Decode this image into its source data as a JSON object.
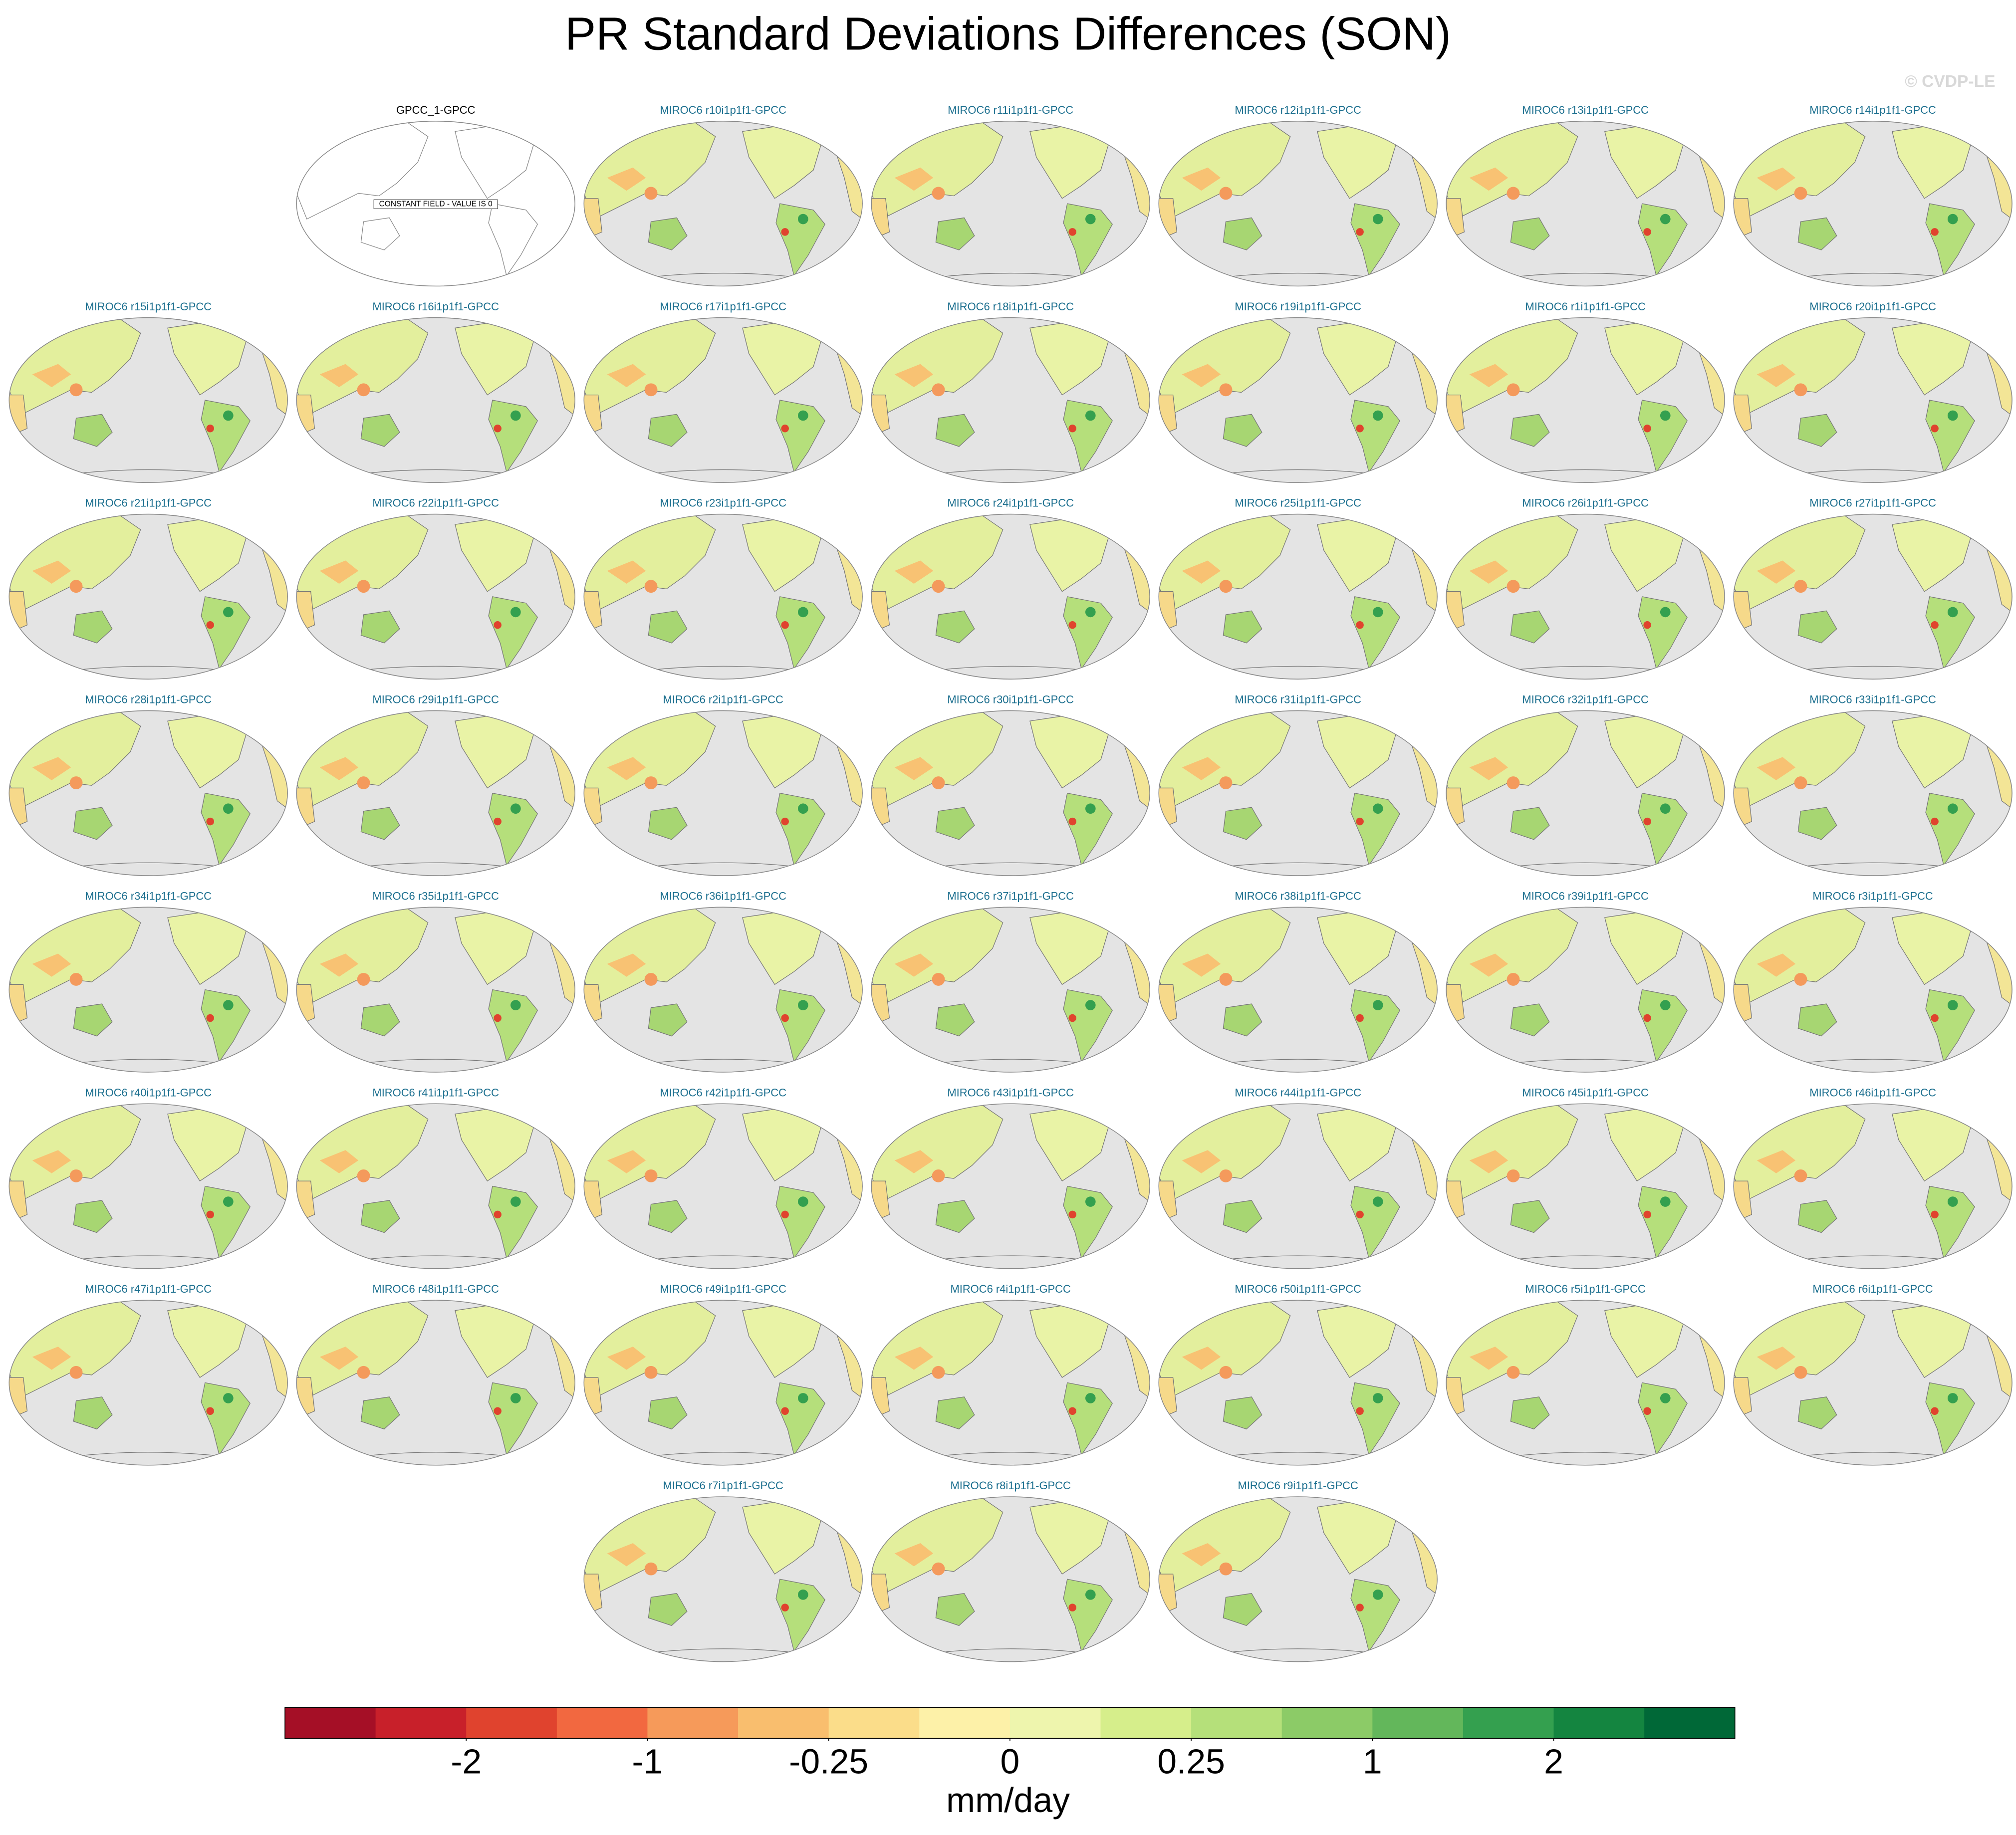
{
  "title": "PR Standard Deviations Differences (SON)",
  "watermark": "© CVDP-LE",
  "panels": [
    {
      "title": "GPCC_1-GPCC",
      "note": "CONSTANT FIELD - VALUE IS 0"
    },
    {
      "title": "MIROC6 r10i1p1f1-GPCC"
    },
    {
      "title": "MIROC6 r11i1p1f1-GPCC"
    },
    {
      "title": "MIROC6 r12i1p1f1-GPCC"
    },
    {
      "title": "MIROC6 r13i1p1f1-GPCC"
    },
    {
      "title": "MIROC6 r14i1p1f1-GPCC"
    },
    {
      "title": "MIROC6 r15i1p1f1-GPCC"
    },
    {
      "title": "MIROC6 r16i1p1f1-GPCC"
    },
    {
      "title": "MIROC6 r17i1p1f1-GPCC"
    },
    {
      "title": "MIROC6 r18i1p1f1-GPCC"
    },
    {
      "title": "MIROC6 r19i1p1f1-GPCC"
    },
    {
      "title": "MIROC6 r1i1p1f1-GPCC"
    },
    {
      "title": "MIROC6 r20i1p1f1-GPCC"
    },
    {
      "title": "MIROC6 r21i1p1f1-GPCC"
    },
    {
      "title": "MIROC6 r22i1p1f1-GPCC"
    },
    {
      "title": "MIROC6 r23i1p1f1-GPCC"
    },
    {
      "title": "MIROC6 r24i1p1f1-GPCC"
    },
    {
      "title": "MIROC6 r25i1p1f1-GPCC"
    },
    {
      "title": "MIROC6 r26i1p1f1-GPCC"
    },
    {
      "title": "MIROC6 r27i1p1f1-GPCC"
    },
    {
      "title": "MIROC6 r28i1p1f1-GPCC"
    },
    {
      "title": "MIROC6 r29i1p1f1-GPCC"
    },
    {
      "title": "MIROC6 r2i1p1f1-GPCC"
    },
    {
      "title": "MIROC6 r30i1p1f1-GPCC"
    },
    {
      "title": "MIROC6 r31i1p1f1-GPCC"
    },
    {
      "title": "MIROC6 r32i1p1f1-GPCC"
    },
    {
      "title": "MIROC6 r33i1p1f1-GPCC"
    },
    {
      "title": "MIROC6 r34i1p1f1-GPCC"
    },
    {
      "title": "MIROC6 r35i1p1f1-GPCC"
    },
    {
      "title": "MIROC6 r36i1p1f1-GPCC"
    },
    {
      "title": "MIROC6 r37i1p1f1-GPCC"
    },
    {
      "title": "MIROC6 r38i1p1f1-GPCC"
    },
    {
      "title": "MIROC6 r39i1p1f1-GPCC"
    },
    {
      "title": "MIROC6 r3i1p1f1-GPCC"
    },
    {
      "title": "MIROC6 r40i1p1f1-GPCC"
    },
    {
      "title": "MIROC6 r41i1p1f1-GPCC"
    },
    {
      "title": "MIROC6 r42i1p1f1-GPCC"
    },
    {
      "title": "MIROC6 r43i1p1f1-GPCC"
    },
    {
      "title": "MIROC6 r44i1p1f1-GPCC"
    },
    {
      "title": "MIROC6 r45i1p1f1-GPCC"
    },
    {
      "title": "MIROC6 r46i1p1f1-GPCC"
    },
    {
      "title": "MIROC6 r47i1p1f1-GPCC"
    },
    {
      "title": "MIROC6 r48i1p1f1-GPCC"
    },
    {
      "title": "MIROC6 r49i1p1f1-GPCC"
    },
    {
      "title": "MIROC6 r4i1p1f1-GPCC"
    },
    {
      "title": "MIROC6 r50i1p1f1-GPCC"
    },
    {
      "title": "MIROC6 r5i1p1f1-GPCC"
    },
    {
      "title": "MIROC6 r6i1p1f1-GPCC"
    },
    {
      "title": "MIROC6 r7i1p1f1-GPCC"
    },
    {
      "title": "MIROC6 r8i1p1f1-GPCC"
    },
    {
      "title": "MIROC6 r9i1p1f1-GPCC"
    }
  ],
  "colorbar": {
    "colors": [
      "#a50f26",
      "#c8202a",
      "#e0432e",
      "#f26840",
      "#f69a5a",
      "#f9be6e",
      "#fbdd8a",
      "#fdf1a8",
      "#eef5ad",
      "#d6ee8b",
      "#b5e07a",
      "#8ccb67",
      "#63b75b",
      "#34a04f",
      "#148540",
      "#006837"
    ],
    "ticks": [
      -2,
      -1,
      -0.25,
      0,
      0.25,
      1,
      2
    ],
    "label": "mm/day"
  }
}
